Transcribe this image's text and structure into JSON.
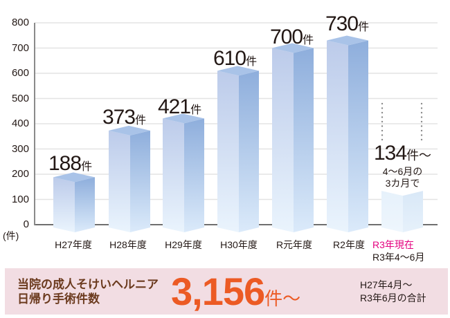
{
  "chart_data": {
    "type": "bar",
    "title": "",
    "xlabel": "",
    "ylabel": "(件)",
    "ylim": [
      0,
      800
    ],
    "yticks": [
      0,
      100,
      200,
      300,
      400,
      500,
      600,
      700,
      800
    ],
    "grid": true,
    "legend": null,
    "categories": [
      "H27年度",
      "H28年度",
      "H29年度",
      "H30年度",
      "R元年度",
      "R2年度",
      "R3年現在 R3年4〜6月"
    ],
    "values": [
      188,
      373,
      421,
      610,
      700,
      730,
      134
    ],
    "data_labels": [
      "188件",
      "373件",
      "421件",
      "610件",
      "700件",
      "730件",
      "134件〜"
    ],
    "annotations": [
      "4〜6月の3カ月で"
    ],
    "style": "3d-bar"
  },
  "axis": {
    "unit_label": "(件)",
    "ticks": [
      "0",
      "100",
      "200",
      "300",
      "400",
      "500",
      "600",
      "700",
      "800"
    ]
  },
  "bars": [
    {
      "label": "H27年度",
      "value": 188,
      "num": "188",
      "unit": "件"
    },
    {
      "label": "H28年度",
      "value": 373,
      "num": "373",
      "unit": "件"
    },
    {
      "label": "H29年度",
      "value": 421,
      "num": "421",
      "unit": "件"
    },
    {
      "label": "H30年度",
      "value": 610,
      "num": "610",
      "unit": "件"
    },
    {
      "label": "R元年度",
      "value": 700,
      "num": "700",
      "unit": "件"
    },
    {
      "label": "R2年度",
      "value": 730,
      "num": "730",
      "unit": "件"
    },
    {
      "label": "R3年4〜6月",
      "accent_label": "R3年現在",
      "value": 134,
      "num": "134",
      "unit": "件〜",
      "note_line1": "4〜6月の",
      "note_line2": "3カ月で"
    }
  ],
  "summary": {
    "title_line1": "当院の成人そけいヘルニア",
    "title_line2": "日帰り手術件数",
    "total": "3,156",
    "total_unit": "件〜",
    "note_line1": "H27年4月〜",
    "note_line2": "R3年6月の合計"
  },
  "colors": {
    "bar_front": "#c7d6ee",
    "bar_side": "#8fb0dd",
    "bar_top": "#a9c3e8",
    "accent_label": "#e4007f",
    "summary_bg": "#f2dde3",
    "summary_number": "#ec5a24",
    "summary_title": "#6b3a1e"
  }
}
